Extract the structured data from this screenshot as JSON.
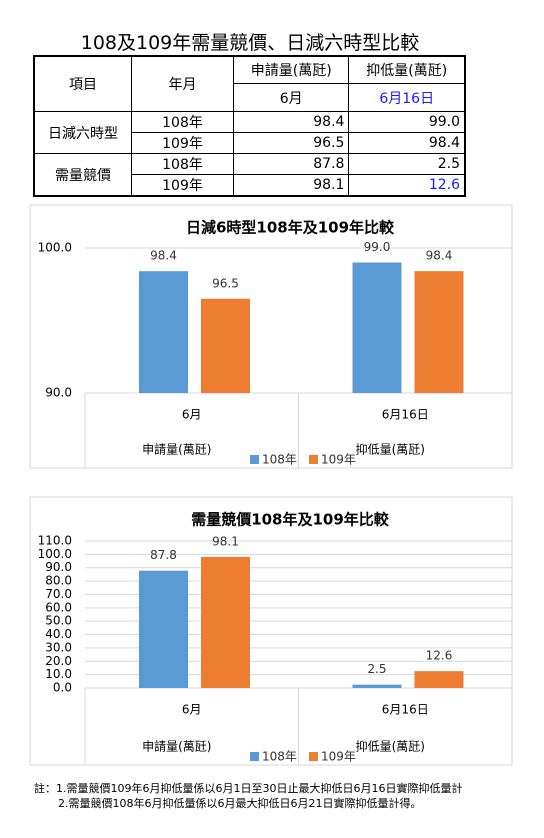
{
  "title": "108及109年需量競價、日減六時型比較",
  "table": {
    "header": [
      "項目",
      "年月",
      "申請量(萬瓩)",
      "抑低量(萬瓩)"
    ],
    "subheader": [
      "6月",
      "6月16日"
    ],
    "groups": [
      {
        "name": "日減六時型",
        "rows": [
          [
            "108年",
            "98.4",
            "99.0"
          ],
          [
            "109年",
            "96.5",
            "98.4"
          ]
        ]
      },
      {
        "name": "需量競價",
        "rows": [
          [
            "108年",
            "87.8",
            "2.5"
          ],
          [
            "109年",
            "98.1",
            "12.6"
          ]
        ]
      }
    ]
  },
  "chart_data": [
    {
      "type": "bar",
      "title": "日減6時型108年及109年比較",
      "categories": [
        "6月",
        "6月16日"
      ],
      "category_groups": [
        "申請量(萬瓩)",
        "抑低量(萬瓩)"
      ],
      "series": [
        {
          "name": "108年",
          "color": "#5b9bd5",
          "values": [
            98.4,
            99.0
          ],
          "value_labels": [
            "98.4",
            "99.0"
          ]
        },
        {
          "name": "109年",
          "color": "#ed7d31",
          "values": [
            96.5,
            98.4
          ],
          "value_labels": [
            "96.5",
            "98.4"
          ]
        }
      ],
      "ylim": [
        90,
        100
      ],
      "yticks": [
        {
          "value": 90,
          "label": "90.0"
        },
        {
          "value": 100,
          "label": "100.0"
        }
      ],
      "grid": true
    },
    {
      "type": "bar",
      "title": "需量競價108年及109年比較",
      "categories": [
        "6月",
        "6月16日"
      ],
      "category_groups": [
        "申請量(萬瓩)",
        "抑低量(萬瓩)"
      ],
      "series": [
        {
          "name": "108年",
          "color": "#5b9bd5",
          "values": [
            87.8,
            2.5
          ],
          "value_labels": [
            "87.8",
            "2.5"
          ]
        },
        {
          "name": "109年",
          "color": "#ed7d31",
          "values": [
            98.1,
            12.6
          ],
          "value_labels": [
            "98.1",
            "12.6"
          ]
        }
      ],
      "ylim": [
        0,
        110
      ],
      "yticks": [
        {
          "value": 0,
          "label": "0.0"
        },
        {
          "value": 10,
          "label": "10.0"
        },
        {
          "value": 20,
          "label": "20.0"
        },
        {
          "value": 30,
          "label": "30.0"
        },
        {
          "value": 40,
          "label": "40.0"
        },
        {
          "value": 50,
          "label": "50.0"
        },
        {
          "value": 60,
          "label": "60.0"
        },
        {
          "value": 70,
          "label": "70.0"
        },
        {
          "value": 80,
          "label": "80.0"
        },
        {
          "value": 90,
          "label": "90.0"
        },
        {
          "value": 100,
          "label": "100.0"
        },
        {
          "value": 110,
          "label": "110.0"
        }
      ],
      "grid": true
    }
  ],
  "notes": [
    "註：1.需量競價109年6月抑低量係以6月1日至30日止最大抑低日6月16日實際抑低量計",
    "2.需量競價108年6月抑低量係以6月最大抑低日6月21日實際抑低量計得。"
  ]
}
